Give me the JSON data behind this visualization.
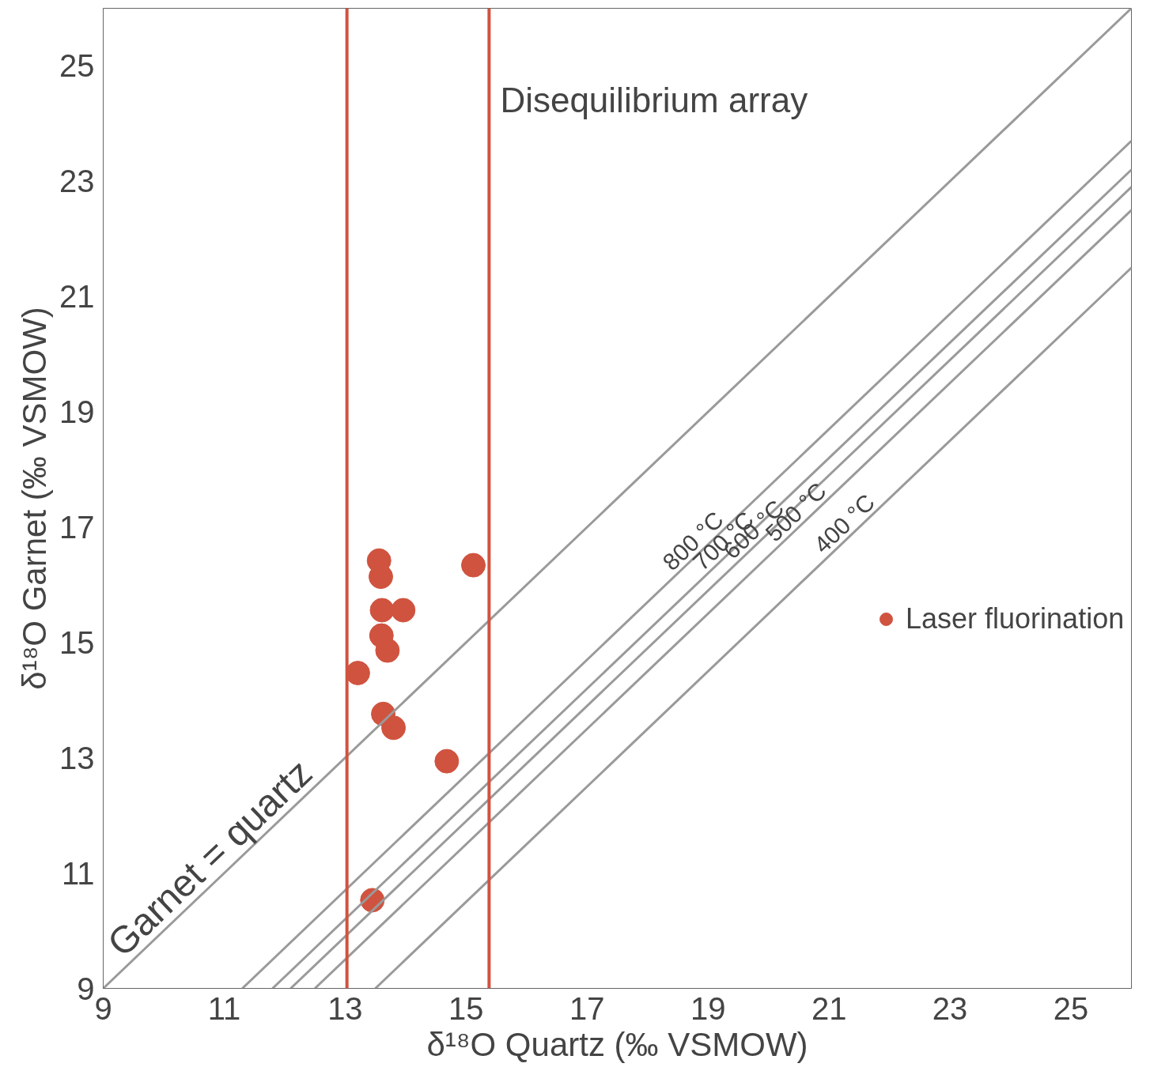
{
  "chart_data": {
    "type": "scatter",
    "xlabel": "δ¹⁸O Quartz (‰ VSMOW)",
    "ylabel": "δ¹⁸O Garnet (‰ VSMOW)",
    "xlim": [
      9,
      26
    ],
    "ylim": [
      9,
      26
    ],
    "xticks": [
      9,
      11,
      13,
      15,
      17,
      19,
      21,
      23,
      25
    ],
    "yticks": [
      9,
      11,
      13,
      15,
      17,
      19,
      21,
      23,
      25
    ],
    "grid": false,
    "legend": "right",
    "series": [
      {
        "name": "Laser fluorination",
        "color": "#d0533f",
        "marker": "circle",
        "x": [
          13.56,
          13.59,
          15.12,
          13.61,
          13.96,
          13.6,
          13.7,
          13.21,
          13.63,
          13.8,
          14.68,
          13.45
        ],
        "values": [
          16.42,
          16.14,
          16.34,
          15.56,
          15.56,
          15.12,
          14.86,
          14.47,
          13.76,
          13.52,
          12.94,
          10.53
        ]
      },
      {
        "type": "line",
        "color": "#9a9a9a",
        "line_style": "solid",
        "x": [
          9,
          26
        ],
        "values": [
          9,
          26
        ]
      },
      {
        "type": "line",
        "color": "#9a9a9a",
        "line_style": "solid",
        "x": [
          11.3,
          26
        ],
        "values": [
          9,
          23.7
        ]
      },
      {
        "type": "line",
        "color": "#9a9a9a",
        "line_style": "solid",
        "x": [
          11.8,
          26
        ],
        "values": [
          9,
          23.2
        ]
      },
      {
        "type": "line",
        "color": "#9a9a9a",
        "line_style": "solid",
        "x": [
          12.1,
          26
        ],
        "values": [
          9,
          22.9
        ]
      },
      {
        "type": "line",
        "color": "#9a9a9a",
        "line_style": "solid",
        "x": [
          12.5,
          26
        ],
        "values": [
          9,
          22.5
        ]
      },
      {
        "type": "line",
        "color": "#9a9a9a",
        "line_style": "solid",
        "x": [
          13.5,
          26
        ],
        "values": [
          9,
          21.5
        ]
      }
    ],
    "ref_lines": [
      {
        "axis": "x",
        "value": 13.03,
        "color": "#d0533f"
      },
      {
        "axis": "x",
        "value": 15.38,
        "color": "#d0533f"
      }
    ],
    "annotations": [
      "Disequilibrium array",
      {
        "text": "Garnet = quartz",
        "x": 11.0,
        "y": 11.0
      },
      {
        "text": "800 °C",
        "x": 18.9,
        "y": 16.6
      },
      {
        "text": "700 °C",
        "x": 19.4,
        "y": 16.6
      },
      {
        "text": "600 °C",
        "x": 19.9,
        "y": 16.8
      },
      {
        "text": "500 °C",
        "x": 20.6,
        "y": 17.1
      },
      {
        "text": "400 °C",
        "x": 21.4,
        "y": 16.9
      }
    ]
  }
}
